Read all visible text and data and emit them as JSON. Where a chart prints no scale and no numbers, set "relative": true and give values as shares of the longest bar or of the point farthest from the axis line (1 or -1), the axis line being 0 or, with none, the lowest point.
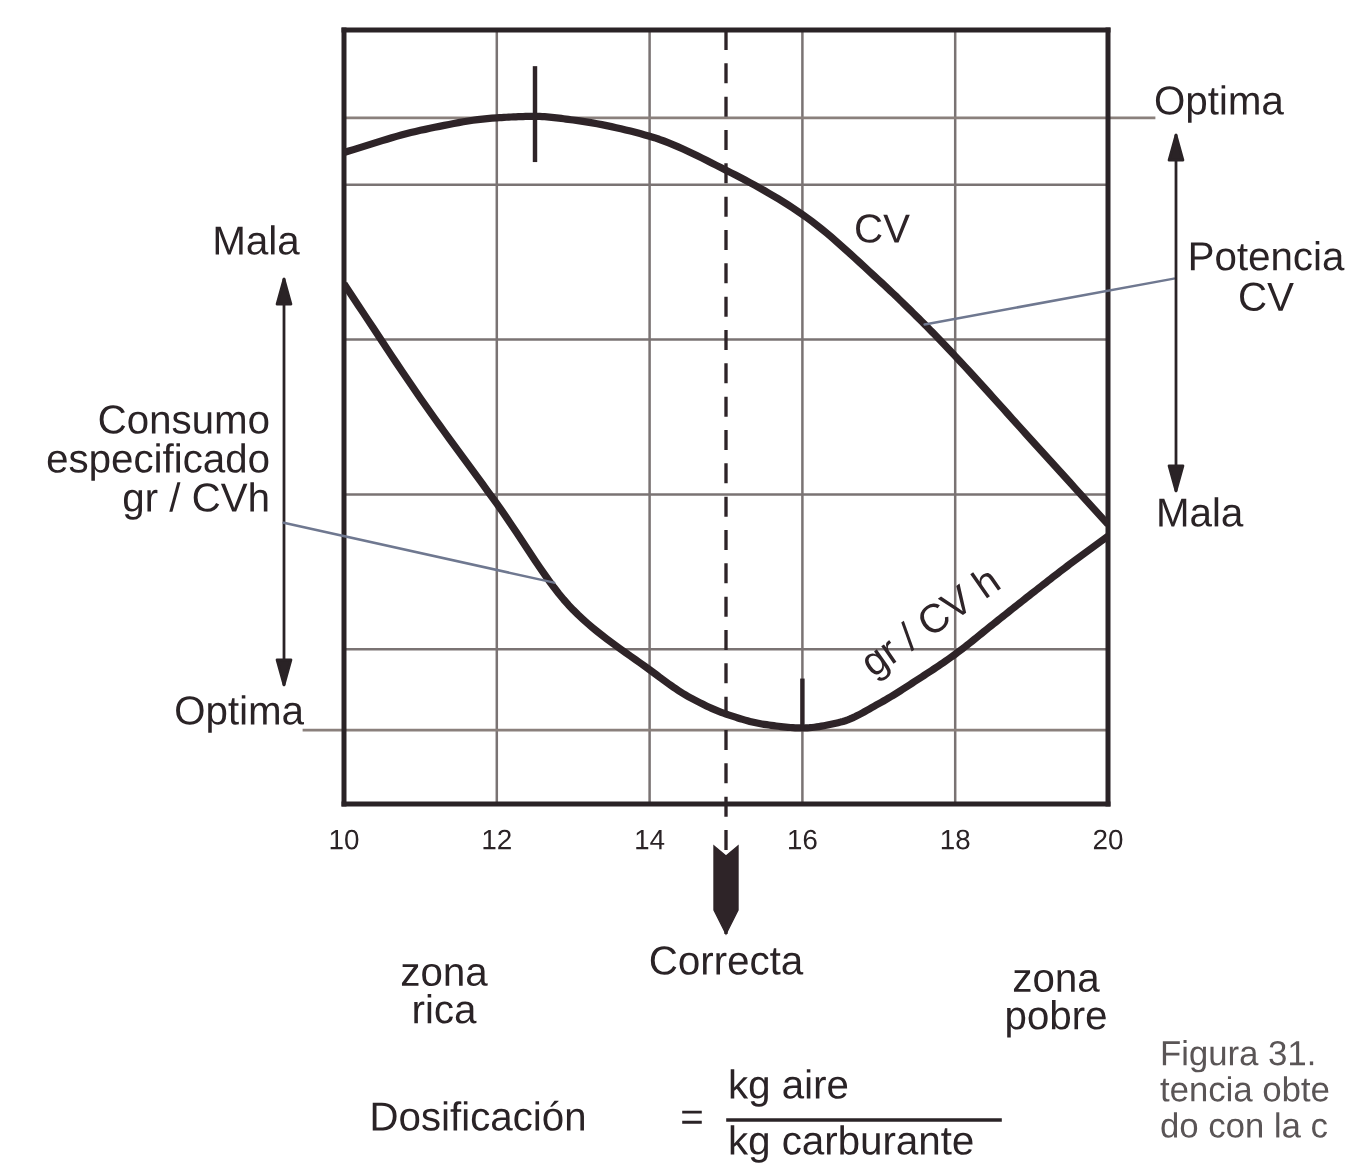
{
  "chart_data": {
    "type": "line",
    "relative": true,
    "xlim": [
      10,
      20
    ],
    "xticks": [
      10,
      12,
      14,
      16,
      18,
      20
    ],
    "grid": true,
    "tick_labels": "x",
    "series": [
      {
        "name": "CV",
        "color": "#2e2428",
        "x": [
          10,
          11,
          12,
          12.5,
          13,
          14,
          15,
          16,
          17,
          17.6,
          18,
          19,
          20
        ],
        "values": [
          0.883,
          0.913,
          0.93,
          0.932,
          0.927,
          0.905,
          0.859,
          0.799,
          0.71,
          0.65,
          0.607,
          0.493,
          0.379
        ]
      },
      {
        "name": "gr / CV h",
        "color": "#2e2428",
        "x": [
          10,
          11,
          12,
          13,
          14,
          14.5,
          15,
          15.5,
          16,
          16.5,
          17,
          17.5,
          18,
          18.5,
          19,
          19.5,
          20
        ],
        "values": [
          0.705,
          0.55,
          0.407,
          0.263,
          0.182,
          0.146,
          0.122,
          0.108,
          0.103,
          0.111,
          0.136,
          0.168,
          0.203,
          0.244,
          0.285,
          0.325,
          0.363
        ]
      },
      {
        "color": "#2e2428",
        "x": [
          12.5,
          12.5
        ],
        "values": [
          1.0,
          0.87
        ]
      },
      {
        "color": "#2e2428",
        "x": [
          16,
          16
        ],
        "values": [
          0.17,
          0.1
        ]
      }
    ],
    "ref_lines": [
      {
        "axis": "y",
        "value": 0.93,
        "label": "Optima",
        "color": "#8a807c"
      },
      {
        "axis": "y",
        "value": 0.1,
        "label": "Optima",
        "color": "#8a807c"
      },
      {
        "axis": "x",
        "value": 15,
        "label": "Correcta",
        "color": "#2e2428",
        "line_style": "dashed"
      }
    ],
    "annotations": [
      "Mala",
      {
        "text": "Consumo\nespecificado\ngr / CVh",
        "x": 12.75,
        "y": 0.3
      },
      {
        "text": "Potencia\nCV",
        "x": 17.6,
        "y": 0.65
      },
      "Mala",
      "zona\nrica",
      "zona\npobre",
      "Dosificación",
      "=",
      "kg aire",
      "kg carburante",
      "Figura 31.\ntencia obte\ndo con la c"
    ]
  }
}
